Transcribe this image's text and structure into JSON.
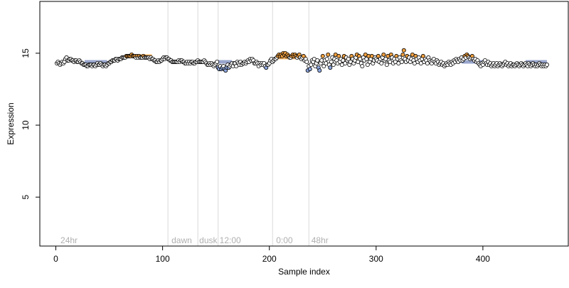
{
  "chart_data": {
    "type": "scatter",
    "title": "",
    "xlabel": "Sample index",
    "ylabel": "Expression",
    "xlim": [
      -15,
      480
    ],
    "ylim": [
      1.6,
      18.6
    ],
    "x_ticks": [
      0,
      100,
      200,
      300,
      400
    ],
    "y_ticks": [
      5,
      10,
      15
    ],
    "grid": false,
    "legend": "none",
    "n_points": 460,
    "vertical_lines": [
      105,
      133,
      152,
      203,
      237
    ],
    "annotations": [
      {
        "text": "24hr",
        "x": 3
      },
      {
        "text": "dawn",
        "x": 107
      },
      {
        "text": "dusk",
        "x": 133
      },
      {
        "text": "12:00",
        "x": 152
      },
      {
        "text": "0:00",
        "x": 205
      },
      {
        "text": "48hr",
        "x": 238
      }
    ],
    "annotation_y": 2.0,
    "colors": {
      "point_outline": "#000000",
      "point_fill_default": "#ffffff",
      "point_fill_high": "#f0a040",
      "point_fill_low": "#8fa8e0",
      "fit_segment_low": "#8090c0",
      "fit_segment_high": "#f0a040",
      "vline": "#d9d9d9",
      "annotation": "#b0b0b0"
    },
    "fit_segments": [
      {
        "x0": 27,
        "x1": 48,
        "y": 14.4,
        "color": "low"
      },
      {
        "x0": 70,
        "x1": 90,
        "y": 14.8,
        "color": "high"
      },
      {
        "x0": 152,
        "x1": 165,
        "y": 14.4,
        "color": "low"
      },
      {
        "x0": 208,
        "x1": 235,
        "y": 14.7,
        "color": "high"
      },
      {
        "x0": 268,
        "x1": 283,
        "y": 14.6,
        "color": "high"
      },
      {
        "x0": 380,
        "x1": 400,
        "y": 14.4,
        "color": "low"
      },
      {
        "x0": 440,
        "x1": 460,
        "y": 14.4,
        "color": "low"
      }
    ],
    "series": [
      {
        "y": [
          14.3,
          14.4,
          14.3,
          14.2,
          14.3,
          14.4,
          14.3,
          14.4,
          14.6,
          14.7,
          14.5,
          14.5,
          14.6,
          14.6,
          14.5,
          14.5,
          14.4,
          14.5,
          14.5,
          14.4,
          14.4,
          14.5,
          14.4,
          14.3,
          14.3,
          14.2,
          14.2,
          14.2,
          14.1,
          14.1,
          14.2,
          14.2,
          14.2,
          14.1,
          14.2,
          14.2,
          14.1,
          14.2,
          14.3,
          14.2,
          14.2,
          14.3,
          14.2,
          14.1,
          14.2,
          14.2,
          14.1,
          14.2,
          14.3,
          14.3,
          14.4,
          14.4,
          14.5,
          14.5,
          14.5,
          14.6,
          14.6,
          14.5,
          14.6,
          14.6,
          14.6,
          14.7,
          14.7,
          14.7,
          14.7,
          14.8,
          14.8,
          14.8,
          14.8,
          14.8,
          14.9,
          14.8,
          14.8,
          14.8,
          14.7,
          14.8,
          14.7,
          14.8,
          14.7,
          14.7,
          14.7,
          14.8,
          14.7,
          14.7,
          14.7,
          14.7,
          14.7,
          14.6,
          14.7,
          14.6,
          14.6,
          14.5,
          14.5,
          14.4,
          14.4,
          14.5,
          14.4,
          14.5,
          14.5,
          14.6,
          14.7,
          14.6,
          14.7,
          14.7,
          14.6,
          14.6,
          14.5,
          14.5,
          14.4,
          14.4,
          14.4,
          14.4,
          14.4,
          14.4,
          14.5,
          14.4,
          14.5,
          14.5,
          14.4,
          14.4,
          14.3,
          14.3,
          14.4,
          14.3,
          14.4,
          14.3,
          14.4,
          14.4,
          14.3,
          14.3,
          14.4,
          14.4,
          14.5,
          14.4,
          14.4,
          14.4,
          14.4,
          14.4,
          14.5,
          14.4,
          14.3,
          14.2,
          14.2,
          14.3,
          14.2,
          14.3,
          14.2,
          14.1,
          14.2,
          14.3,
          14.4,
          14.0,
          13.9,
          14.1,
          13.9,
          14.0,
          14.1,
          13.9,
          13.8,
          14.0,
          14.2,
          14.0,
          14.1,
          14.2,
          14.3,
          14.1,
          14.3,
          14.3,
          14.1,
          14.4,
          14.3,
          14.2,
          14.4,
          14.2,
          14.3,
          14.3,
          14.4,
          14.3,
          14.4,
          14.5,
          14.4,
          14.6,
          14.5,
          14.6,
          14.5,
          14.3,
          14.3,
          14.4,
          14.3,
          14.1,
          14.3,
          14.2,
          14.3,
          14.2,
          14.3,
          14.1,
          14.0,
          14.2,
          14.2,
          14.3,
          14.5,
          14.6,
          14.4,
          14.5,
          14.6,
          14.6,
          14.7,
          14.8,
          14.9,
          14.8,
          14.9,
          14.8,
          15.0,
          14.9,
          15.0,
          14.8,
          14.9,
          14.8,
          14.7,
          14.7,
          14.8,
          14.9,
          14.8,
          14.9,
          14.8,
          14.7,
          14.8,
          14.9,
          14.7,
          14.6,
          14.7,
          14.8,
          14.5,
          14.6,
          14.4,
          13.8,
          14.1,
          13.9,
          14.2,
          14.5,
          14.4,
          14.6,
          14.1,
          14.3,
          14.5,
          14.0,
          13.8,
          14.3,
          14.5,
          14.8,
          14.1,
          14.5,
          14.3,
          14.6,
          14.9,
          14.2,
          14.0,
          14.4,
          14.7,
          14.2,
          14.6,
          14.9,
          14.5,
          14.3,
          14.8,
          14.4,
          14.6,
          14.2,
          14.5,
          14.8,
          14.3,
          14.7,
          14.5,
          14.6,
          14.2,
          14.4,
          14.8,
          14.6,
          14.3,
          14.5,
          14.7,
          14.9,
          14.4,
          14.8,
          14.6,
          14.3,
          14.1,
          14.7,
          14.5,
          14.9,
          14.6,
          14.2,
          14.8,
          14.4,
          14.6,
          14.8,
          14.3,
          14.5,
          14.7,
          14.6,
          14.5,
          14.8,
          14.4,
          14.6,
          14.3,
          14.7,
          14.9,
          14.5,
          14.6,
          14.2,
          14.8,
          14.5,
          14.4,
          14.9,
          14.7,
          14.3,
          14.6,
          14.4,
          14.8,
          14.6,
          14.3,
          14.7,
          14.5,
          14.4,
          14.9,
          15.2,
          14.6,
          14.4,
          14.8,
          14.5,
          14.7,
          14.4,
          14.6,
          14.9,
          14.5,
          14.3,
          14.8,
          14.6,
          14.4,
          14.7,
          14.5,
          14.3,
          14.6,
          14.8,
          14.4,
          14.6,
          14.5,
          14.3,
          14.7,
          14.5,
          14.4,
          14.3,
          14.5,
          14.6,
          14.4,
          14.3,
          14.5,
          14.4,
          14.2,
          14.3,
          14.4,
          14.2,
          14.3,
          14.1,
          14.2,
          14.3,
          14.2,
          14.4,
          14.3,
          14.2,
          14.4,
          14.3,
          14.5,
          14.4,
          14.6,
          14.5,
          14.4,
          14.6,
          14.5,
          14.7,
          14.5,
          14.6,
          14.8,
          14.7,
          14.9,
          14.8,
          14.7,
          14.6,
          14.7,
          14.8,
          14.6,
          14.5,
          14.6,
          14.4,
          14.5,
          14.3,
          14.2,
          14.1,
          14.3,
          14.2,
          14.4,
          14.5,
          14.3,
          14.2,
          14.4,
          14.2,
          14.3,
          14.1,
          14.2,
          14.3,
          14.1,
          14.2,
          14.3,
          14.1,
          14.2,
          14.3,
          14.2,
          14.1,
          14.2,
          14.3,
          14.4,
          14.2,
          14.3,
          14.1,
          14.2,
          14.3,
          14.1,
          14.2,
          14.2,
          14.1,
          14.2,
          14.3,
          14.2,
          14.1,
          14.2,
          14.3,
          14.2,
          14.1,
          14.2,
          14.3,
          14.2,
          14.1,
          14.3,
          14.2,
          14.1,
          14.2,
          14.3,
          14.2,
          14.1,
          14.2,
          14.1,
          14.2,
          14.3,
          14.2,
          14.1,
          14.2,
          14.1,
          14.2,
          14.1,
          14.2
        ]
      }
    ]
  }
}
